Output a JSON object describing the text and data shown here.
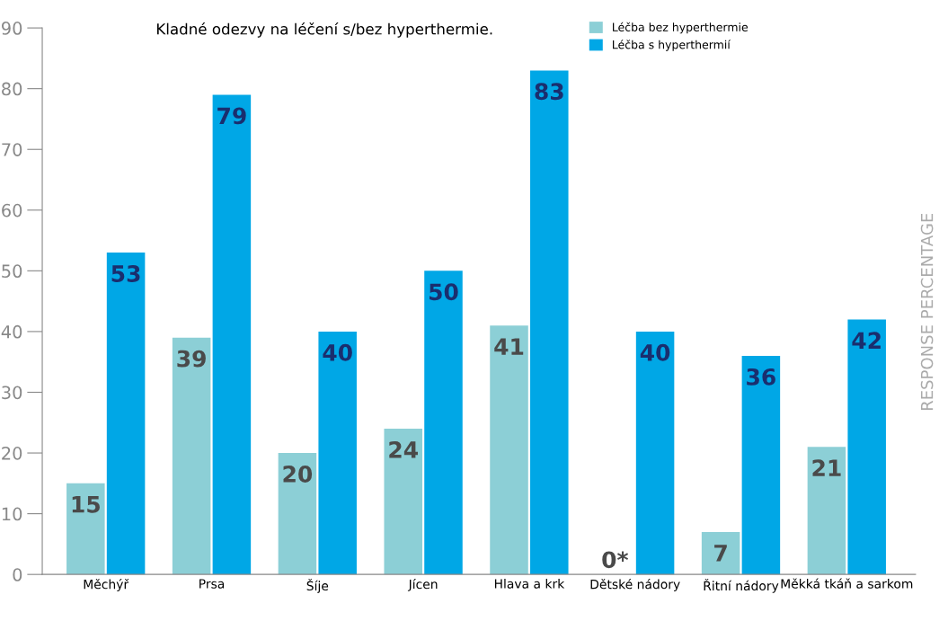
{
  "chart_data": {
    "type": "bar",
    "title": "Kladné odezvy na léčení s/bez hyperthermie.",
    "ylabel": "RESPONSE PERCENTAGE",
    "categories": [
      "Měchýř",
      "Prsa",
      "Šíje",
      "Jícen",
      "Hlava a krk",
      "Dětské nádory",
      "Řitní nádory",
      "Měkká tkáň a sarkom"
    ],
    "series": [
      {
        "name": "Léčba bez hyperthermie",
        "color": "#8ccfd6",
        "values": [
          15,
          39,
          20,
          24,
          41,
          0,
          7,
          21
        ],
        "value_labels": [
          "15",
          "39",
          "20",
          "24",
          "41",
          "0*",
          "7",
          "21"
        ]
      },
      {
        "name": "Léčba s hyperthermií",
        "color": "#00a7e6",
        "values": [
          53,
          79,
          40,
          50,
          83,
          40,
          36,
          42
        ],
        "value_labels": [
          "53",
          "79",
          "40",
          "50",
          "83",
          "40",
          "36",
          "42"
        ]
      }
    ],
    "ylim": [
      0,
      90
    ],
    "yticks": [
      0,
      10,
      20,
      30,
      40,
      50,
      60,
      70,
      80,
      90
    ],
    "grid": false,
    "legend": "top right"
  }
}
